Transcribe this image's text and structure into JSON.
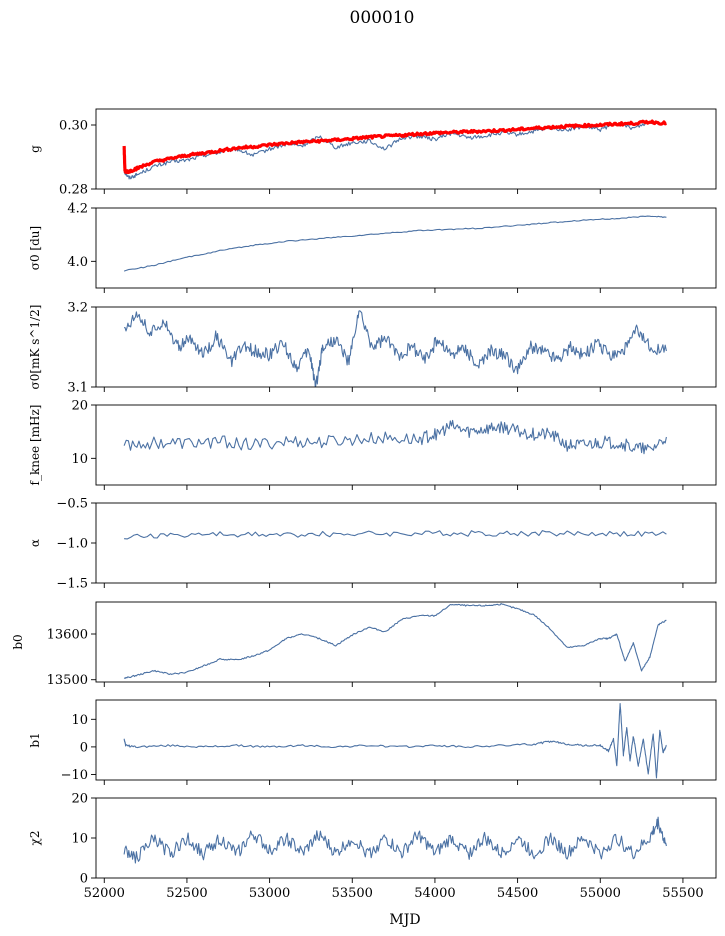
{
  "figure": {
    "title": "000010",
    "xlabel": "MJD"
  },
  "chart_data": {
    "type": "line",
    "shared_x": {
      "label": "MJD",
      "range": [
        51950,
        55700
      ],
      "ticks": [
        52000,
        52500,
        53000,
        53500,
        54000,
        54500,
        55000,
        55500
      ],
      "tick_labels": [
        "52000",
        "52500",
        "53000",
        "53500",
        "54000",
        "54500",
        "55000",
        "55500"
      ],
      "data_range": [
        52120,
        55400
      ]
    },
    "panels": [
      {
        "ylabel": "g",
        "ylim": [
          0.28,
          0.305
        ],
        "yticks": [
          0.28,
          0.3
        ],
        "ytick_labels": [
          "0.28",
          "0.30"
        ],
        "series": [
          {
            "color": "#4c72a4",
            "x": [
              52120,
              52150,
              52200,
              52300,
              52400,
              52500,
              52600,
              52700,
              52800,
              52900,
              53000,
              53100,
              53200,
              53300,
              53400,
              53500,
              53600,
              53700,
              53800,
              53900,
              54000,
              54100,
              54200,
              54300,
              54400,
              54500,
              54600,
              54700,
              54800,
              54900,
              55000,
              55100,
              55200,
              55300,
              55400
            ],
            "y": [
              0.2855,
              0.2835,
              0.2845,
              0.287,
              0.2885,
              0.289,
              0.2905,
              0.2915,
              0.2925,
              0.2905,
              0.2925,
              0.294,
              0.2935,
              0.2965,
              0.293,
              0.2945,
              0.295,
              0.2925,
              0.296,
              0.2965,
              0.2955,
              0.2975,
              0.296,
              0.2965,
              0.2975,
              0.297,
              0.298,
              0.299,
              0.2985,
              0.2995,
              0.2985,
              0.3005,
              0.299,
              0.301,
              0.3005
            ]
          },
          {
            "color": "#ff0000",
            "x": [
              52120,
              52125,
              52150,
              52200,
              52300,
              52400,
              52500,
              52600,
              52700,
              52800,
              52900,
              53000,
              53100,
              53200,
              53300,
              53400,
              53500,
              53600,
              53700,
              53800,
              53900,
              54000,
              54100,
              54200,
              54300,
              54400,
              54500,
              54600,
              54700,
              54800,
              54900,
              55000,
              55100,
              55200,
              55300,
              55400
            ],
            "y": [
              0.2935,
              0.2855,
              0.2855,
              0.2865,
              0.2885,
              0.2895,
              0.2905,
              0.2912,
              0.292,
              0.2928,
              0.2932,
              0.2938,
              0.2943,
              0.2947,
              0.295,
              0.2953,
              0.2957,
              0.2962,
              0.2965,
              0.2968,
              0.2972,
              0.2975,
              0.2977,
              0.2979,
              0.2981,
              0.2983,
              0.2986,
              0.299,
              0.2993,
              0.2996,
              0.2998,
              0.3,
              0.3003,
              0.3005,
              0.301,
              0.3005
            ]
          }
        ]
      },
      {
        "ylabel": "σ0 [du]",
        "ylim": [
          3.9,
          4.2
        ],
        "yticks": [
          4.0,
          4.2
        ],
        "ytick_labels": [
          "4.0",
          "4.2"
        ],
        "series": [
          {
            "color": "#4c72a4",
            "x": [
              52120,
              52300,
              52500,
              52700,
              52900,
              53100,
              53300,
              53500,
              53700,
              53900,
              54100,
              54300,
              54500,
              54700,
              54900,
              55100,
              55300,
              55400
            ],
            "y": [
              3.965,
              3.985,
              4.015,
              4.04,
              4.06,
              4.075,
              4.085,
              4.095,
              4.105,
              4.115,
              4.12,
              4.125,
              4.135,
              4.145,
              4.155,
              4.16,
              4.17,
              4.165
            ]
          }
        ]
      },
      {
        "ylabel": "σ0[mK s^1/2]",
        "ylim": [
          3.1,
          3.2
        ],
        "yticks": [
          3.1,
          3.2
        ],
        "ytick_labels": [
          "3.1",
          "3.2"
        ],
        "series": [
          {
            "color": "#4c72a4",
            "x": [
              52120,
              52200,
              52280,
              52360,
              52440,
              52520,
              52600,
              52680,
              52760,
              52840,
              52920,
              53000,
              53080,
              53160,
              53240,
              53280,
              53320,
              53400,
              53480,
              53540,
              53620,
              53700,
              53780,
              53860,
              53940,
              54020,
              54100,
              54180,
              54260,
              54340,
              54420,
              54500,
              54580,
              54660,
              54740,
              54820,
              54900,
              54980,
              55060,
              55140,
              55220,
              55300,
              55400
            ],
            "y": [
              3.17,
              3.195,
              3.165,
              3.185,
              3.15,
              3.16,
              3.14,
              3.165,
              3.13,
              3.15,
              3.145,
              3.14,
              3.155,
              3.125,
              3.145,
              3.1,
              3.15,
              3.16,
              3.13,
              3.195,
              3.15,
              3.16,
              3.14,
              3.15,
              3.135,
              3.16,
              3.14,
              3.15,
              3.125,
              3.145,
              3.14,
              3.12,
              3.15,
              3.145,
              3.135,
              3.15,
              3.14,
              3.155,
              3.14,
              3.145,
              3.17,
              3.15,
              3.145
            ]
          }
        ]
      },
      {
        "ylabel": "f_knee [mHz]",
        "ylim": [
          5,
          20
        ],
        "yticks": [
          10,
          20
        ],
        "ytick_labels": [
          "10",
          "20"
        ],
        "series": [
          {
            "color": "#4c72a4",
            "x": [
              52120,
              52300,
              52500,
              52700,
              52900,
              53100,
              53300,
              53500,
              53700,
              53900,
              54000,
              54100,
              54200,
              54300,
              54400,
              54500,
              54600,
              54700,
              54800,
              54900,
              55000,
              55100,
              55200,
              55300,
              55400
            ],
            "y": [
              12.5,
              13.0,
              12.8,
              13.2,
              12.5,
              13.2,
              13.0,
              13.5,
              13.8,
              13.5,
              14.5,
              16.0,
              15.0,
              15.5,
              16.0,
              15.0,
              14.5,
              14.5,
              12.5,
              12.5,
              13.0,
              13.0,
              12.0,
              11.5,
              14.0
            ]
          }
        ]
      },
      {
        "ylabel": "α",
        "ylim": [
          -1.5,
          -0.5
        ],
        "yticks": [
          -1.5,
          -1.0,
          -0.5
        ],
        "ytick_labels": [
          "−1.5",
          "−1.0",
          "−0.5"
        ],
        "series": [
          {
            "color": "#4c72a4",
            "x": [
              52120,
              52400,
              52700,
              53000,
              53300,
              53600,
              53900,
              54200,
              54500,
              54800,
              55100,
              55400
            ],
            "y": [
              -0.92,
              -0.9,
              -0.89,
              -0.9,
              -0.89,
              -0.88,
              -0.88,
              -0.88,
              -0.88,
              -0.88,
              -0.88,
              -0.89
            ]
          }
        ]
      },
      {
        "ylabel": "b0",
        "ylim": [
          13495,
          13670
        ],
        "yticks": [
          13500,
          13600
        ],
        "ytick_labels": [
          "13500",
          "13600"
        ],
        "series": [
          {
            "color": "#4c72a4",
            "x": [
              52120,
              52200,
              52300,
              52400,
              52500,
              52600,
              52700,
              52800,
              52900,
              53000,
              53100,
              53200,
              53300,
              53400,
              53500,
              53600,
              53700,
              53800,
              53900,
              54000,
              54100,
              54200,
              54300,
              54400,
              54500,
              54600,
              54700,
              54800,
              54900,
              55000,
              55050,
              55100,
              55150,
              55200,
              55250,
              55300,
              55350,
              55400
            ],
            "y": [
              13503,
              13510,
              13520,
              13512,
              13516,
              13530,
              13545,
              13543,
              13552,
              13565,
              13590,
              13600,
              13590,
              13575,
              13598,
              13615,
              13605,
              13632,
              13640,
              13640,
              13665,
              13662,
              13662,
              13665,
              13655,
              13642,
              13610,
              13570,
              13575,
              13590,
              13590,
              13600,
              13540,
              13580,
              13520,
              13550,
              13620,
              13630
            ]
          }
        ]
      },
      {
        "ylabel": "b1",
        "ylim": [
          -12,
          17
        ],
        "yticks": [
          -10,
          0,
          10
        ],
        "ytick_labels": [
          "−10",
          "0",
          "10"
        ],
        "series": [
          {
            "color": "#4c72a4",
            "x": [
              52120,
              52130,
              52200,
              52400,
              52600,
              52800,
              53000,
              53200,
              53400,
              53600,
              53800,
              54000,
              54200,
              54400,
              54600,
              54700,
              54800,
              54900,
              55000,
              55050,
              55080,
              55100,
              55120,
              55140,
              55160,
              55180,
              55200,
              55230,
              55260,
              55290,
              55320,
              55340,
              55360,
              55380,
              55400
            ],
            "y": [
              3.0,
              0.5,
              0.0,
              0.5,
              0.0,
              0.5,
              0.0,
              0.5,
              0.0,
              0.5,
              0.0,
              0.5,
              0.0,
              0.5,
              1.0,
              2.0,
              1.0,
              0.5,
              0.5,
              -1.5,
              3.0,
              -7.0,
              16.0,
              -3.0,
              7.0,
              -5.0,
              4.0,
              -7.0,
              3.0,
              -10.0,
              5.0,
              -11.0,
              6.0,
              -2.0,
              0.5
            ]
          }
        ]
      },
      {
        "ylabel": "χ2",
        "ylim": [
          0,
          20
        ],
        "yticks": [
          0,
          10,
          20
        ],
        "ytick_labels": [
          "0",
          "10",
          "20"
        ],
        "series": [
          {
            "color": "#4c72a4",
            "x": [
              52120,
              52200,
              52300,
              52400,
              52500,
              52600,
              52700,
              52800,
              52900,
              53000,
              53100,
              53200,
              53300,
              53400,
              53500,
              53600,
              53700,
              53800,
              53900,
              54000,
              54100,
              54200,
              54300,
              54400,
              54500,
              54600,
              54700,
              54800,
              54900,
              55000,
              55100,
              55200,
              55300,
              55350,
              55400
            ],
            "y": [
              7,
              5,
              10,
              6,
              10,
              6,
              10,
              6,
              11,
              7,
              10,
              6,
              11,
              6,
              10,
              6,
              10,
              6,
              11,
              6,
              10,
              6,
              10,
              6,
              10,
              6,
              10,
              6,
              10,
              6,
              10,
              6,
              10,
              14,
              8
            ]
          }
        ]
      }
    ]
  }
}
